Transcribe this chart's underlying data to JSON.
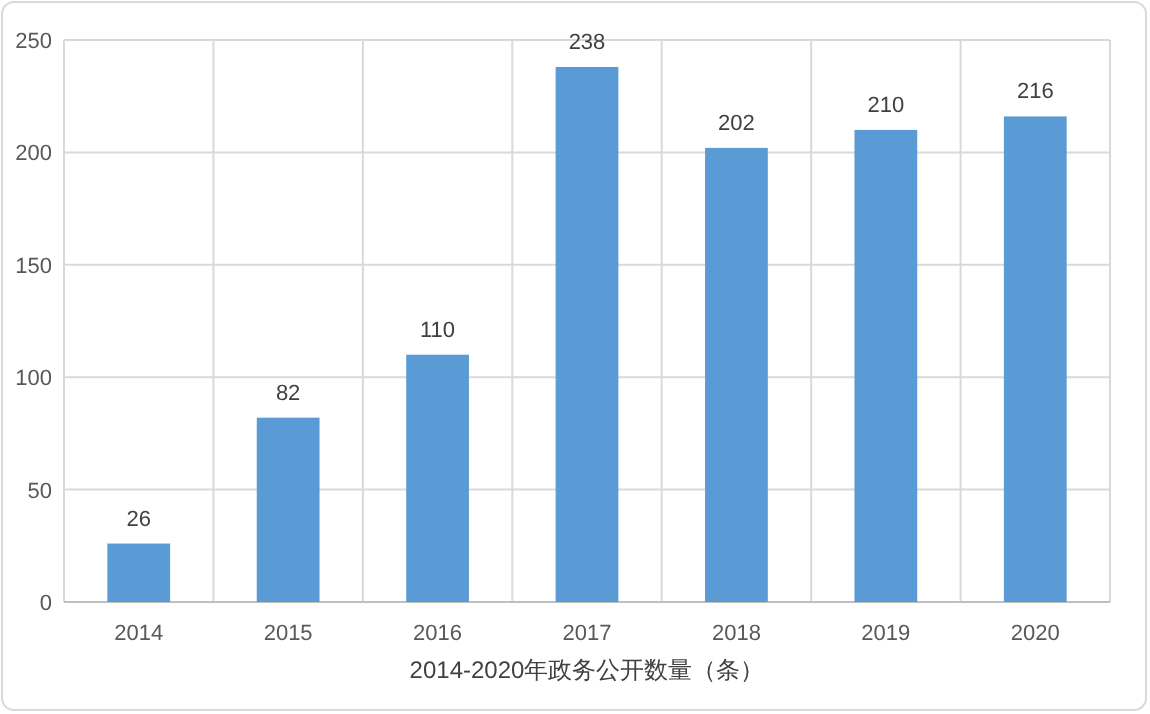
{
  "chart_data": {
    "type": "bar",
    "xlabel": "2014-2020年政务公开数量（条）",
    "categories": [
      "2014",
      "2015",
      "2016",
      "2017",
      "2018",
      "2019",
      "2020"
    ],
    "values": [
      26,
      82,
      110,
      238,
      202,
      210,
      216
    ],
    "color": "#5b9bd5",
    "ylim": [
      0,
      250
    ],
    "yticks": [
      0,
      50,
      100,
      150,
      200,
      250
    ],
    "grid": true,
    "data_labels": true
  }
}
